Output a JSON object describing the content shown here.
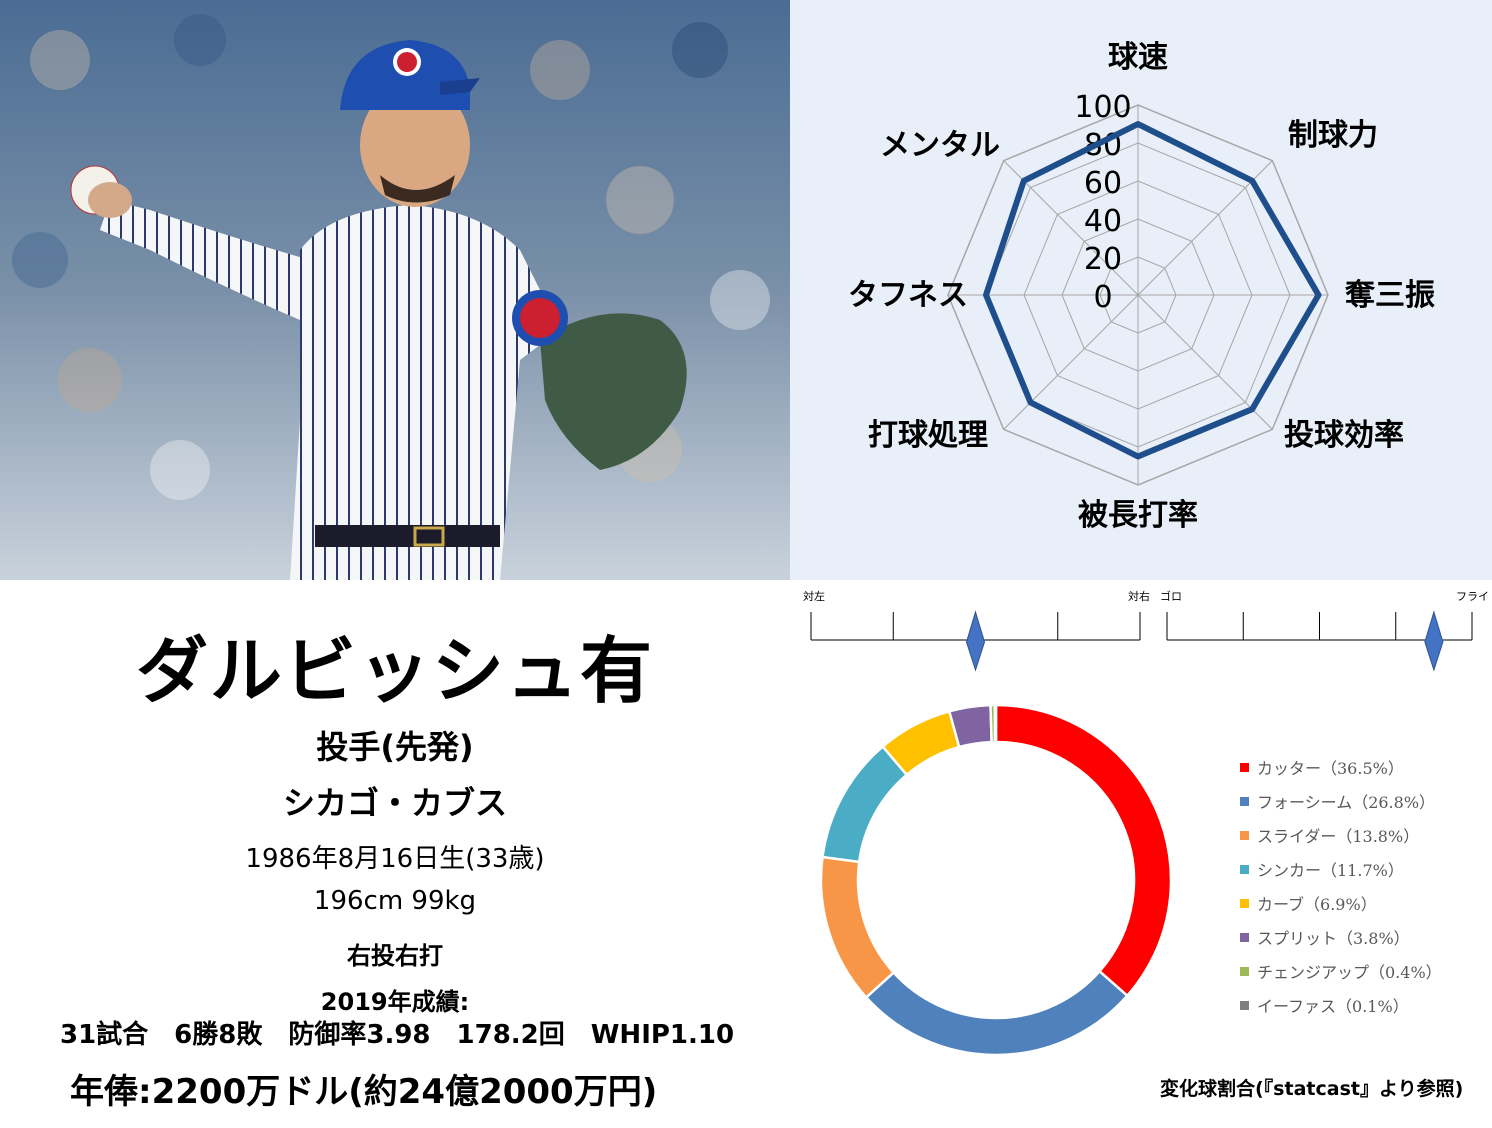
{
  "player": {
    "name": "ダルビッシュ有",
    "position": "投手(先発)",
    "team": "シカゴ・カブス",
    "birth": "1986年8月16日生(33歳)",
    "body": "196cm 99kg",
    "handedness": "右投右打",
    "season_label": "2019年成績:",
    "season_stats": "31試合　6勝8敗　防御率3.98　178.2回　WHIP1.10",
    "salary": "年俸:2200万ドル(約24億2000万円)"
  },
  "radar": {
    "scale_ticks": [
      "0",
      "20",
      "40",
      "60",
      "80",
      "100"
    ],
    "max": 100,
    "axes": [
      "球速",
      "制球力",
      "奪三振",
      "投球効率",
      "被長打率",
      "打球処理",
      "タフネス",
      "メンタル"
    ],
    "values": [
      90,
      85,
      95,
      85,
      85,
      80,
      80,
      85
    ],
    "line_color": "#1f4e8c",
    "grid_color": "#a6a6a6"
  },
  "sliders": [
    {
      "left_label": "対左",
      "right_label": "対右",
      "value": 0.5
    },
    {
      "left_label": "ゴロ",
      "right_label": "フライ",
      "value": 0.875
    }
  ],
  "pitch_mix": {
    "note": "変化球割合(『statcast』より参照)",
    "items": [
      {
        "label": "カッター（36.5%）",
        "value": 36.5,
        "color": "#ff0000"
      },
      {
        "label": "フォーシーム（26.8%）",
        "value": 26.8,
        "color": "#4f81bd"
      },
      {
        "label": "スライダー（13.8%）",
        "value": 13.8,
        "color": "#f79646"
      },
      {
        "label": "シンカー（11.7%）",
        "value": 11.7,
        "color": "#4bacc6"
      },
      {
        "label": "カーブ（6.9%）",
        "value": 6.9,
        "color": "#ffc000"
      },
      {
        "label": "スプリット（3.8%）",
        "value": 3.8,
        "color": "#8064a2"
      },
      {
        "label": "チェンジアップ（0.4%）",
        "value": 0.4,
        "color": "#9bbb59"
      },
      {
        "label": "イーファス（0.1%）",
        "value": 0.1,
        "color": "#7f7f7f"
      }
    ]
  }
}
